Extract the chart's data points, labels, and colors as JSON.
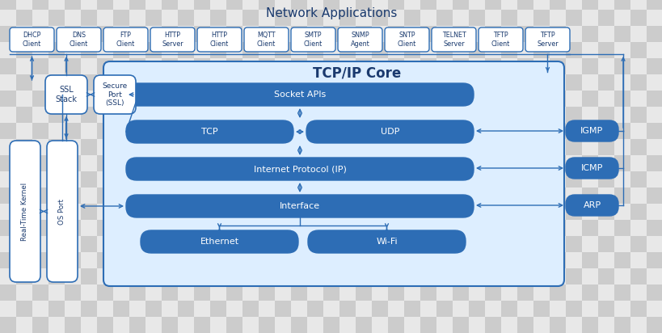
{
  "title": "Network Applications",
  "tcpip_label": "TCP/IP Core",
  "network_apps": [
    "DHCP\nClient",
    "DNS\nClient",
    "FTP\nClient",
    "HTTP\nServer",
    "HTTP\nClient",
    "MQTT\nClient",
    "SMTP\nClient",
    "SNMP\nAgent",
    "SNTP\nClient",
    "TELNET\nServer",
    "TFTP\nClient",
    "TFTP\nServer"
  ],
  "side_boxes_right": [
    "IGMP",
    "ICMP",
    "ARP"
  ],
  "side_boxes_left_top": [
    "SSL\nStack",
    "Secure\nPort\n(SSL)"
  ],
  "side_boxes_left_bottom": [
    "Real-Time\nKernel",
    "OS Port"
  ],
  "white": "#ffffff",
  "blue_fill": "#2d6db5",
  "blue_border": "#2d6db5",
  "blue_light_bg": "#ddeeff",
  "text_dark": "#1a3a6e",
  "checkerboard_a": "#cccccc",
  "checkerboard_b": "#e8e8e8",
  "title_fontsize": 11,
  "label_fontsize": 7.5,
  "inner_fontsize": 8,
  "tcp_core_title_fontsize": 12
}
